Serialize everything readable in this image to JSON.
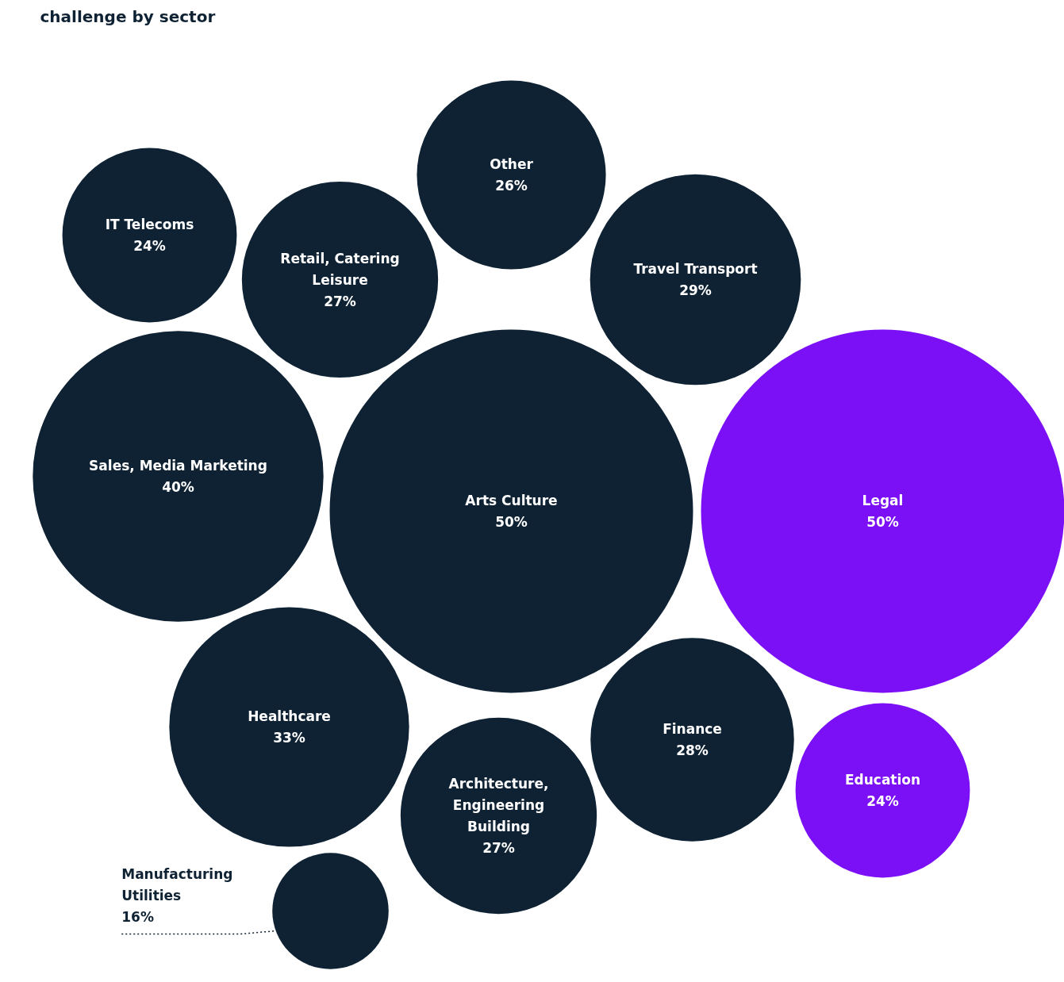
{
  "chart_data": {
    "type": "other",
    "title": "challenge by sector",
    "categories": [
      "Travel Transport",
      "Arts Culture",
      "Healthcare",
      "Retail, Catering Leisure",
      "Other",
      "Finance",
      "Sales, Media Marketing",
      "Legal",
      "Architecture, Engineering Building",
      "Manufacturing Utilities",
      "IT Telecoms",
      "Education"
    ],
    "values": [
      29,
      50,
      33,
      27,
      26,
      28,
      40,
      50,
      27,
      16,
      24,
      24
    ],
    "value_labels": [
      "29%",
      "50%",
      "33%",
      "27%",
      "26%",
      "28%",
      "40%",
      "50%",
      "27%",
      "16%",
      "24%",
      "24%"
    ],
    "colors": [
      "#0e2233",
      "#0e2233",
      "#0e2233",
      "#0e2233",
      "#0e2233",
      "#0e2233",
      "#0e2233",
      "#7b10f7",
      "#0e2233",
      "#0e2233",
      "#0e2233",
      "#7b10f7"
    ]
  }
}
